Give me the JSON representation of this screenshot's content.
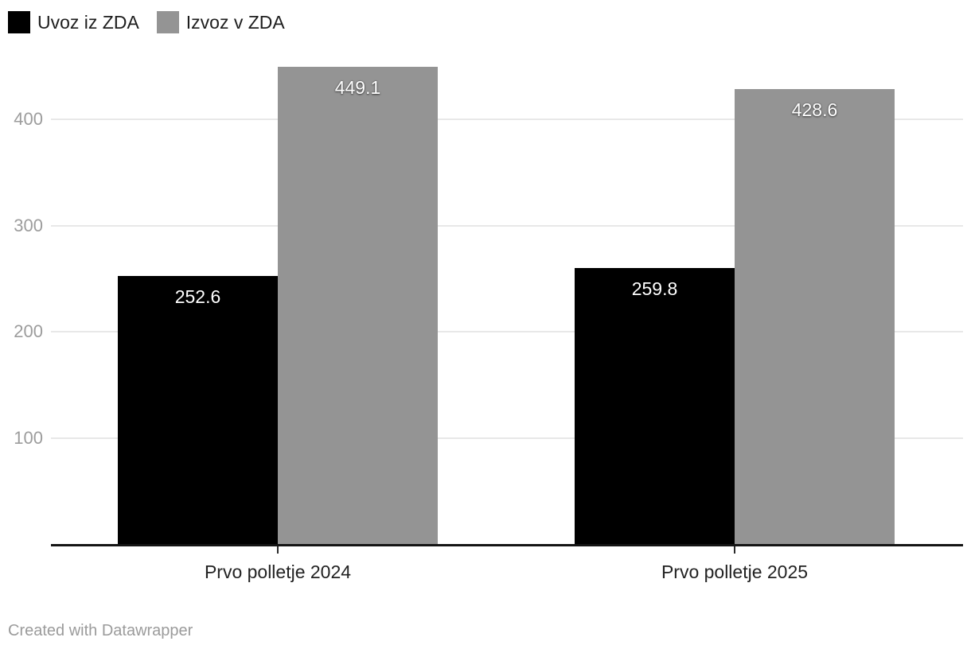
{
  "legend": {
    "items": [
      {
        "label": "Uvoz iz ZDA",
        "color": "#000000"
      },
      {
        "label": "Izvoz v ZDA",
        "color": "#949494"
      }
    ]
  },
  "chart_data": {
    "type": "bar",
    "categories": [
      "Prvo polletje 2024",
      "Prvo polletje 2025"
    ],
    "series": [
      {
        "name": "Uvoz iz ZDA",
        "color": "#000000",
        "values": [
          252.6,
          259.8
        ]
      },
      {
        "name": "Izvoz v ZDA",
        "color": "#949494",
        "values": [
          449.1,
          428.6
        ]
      }
    ],
    "value_labels": [
      [
        "252.6",
        "259.8"
      ],
      [
        "449.1",
        "428.6"
      ]
    ],
    "yticks": [
      100,
      200,
      300,
      400
    ],
    "ylim": [
      0,
      460
    ],
    "grid": true,
    "legend_position": "top-left",
    "xlabel": "",
    "ylabel": ""
  },
  "footer": {
    "text": "Created with Datawrapper"
  }
}
